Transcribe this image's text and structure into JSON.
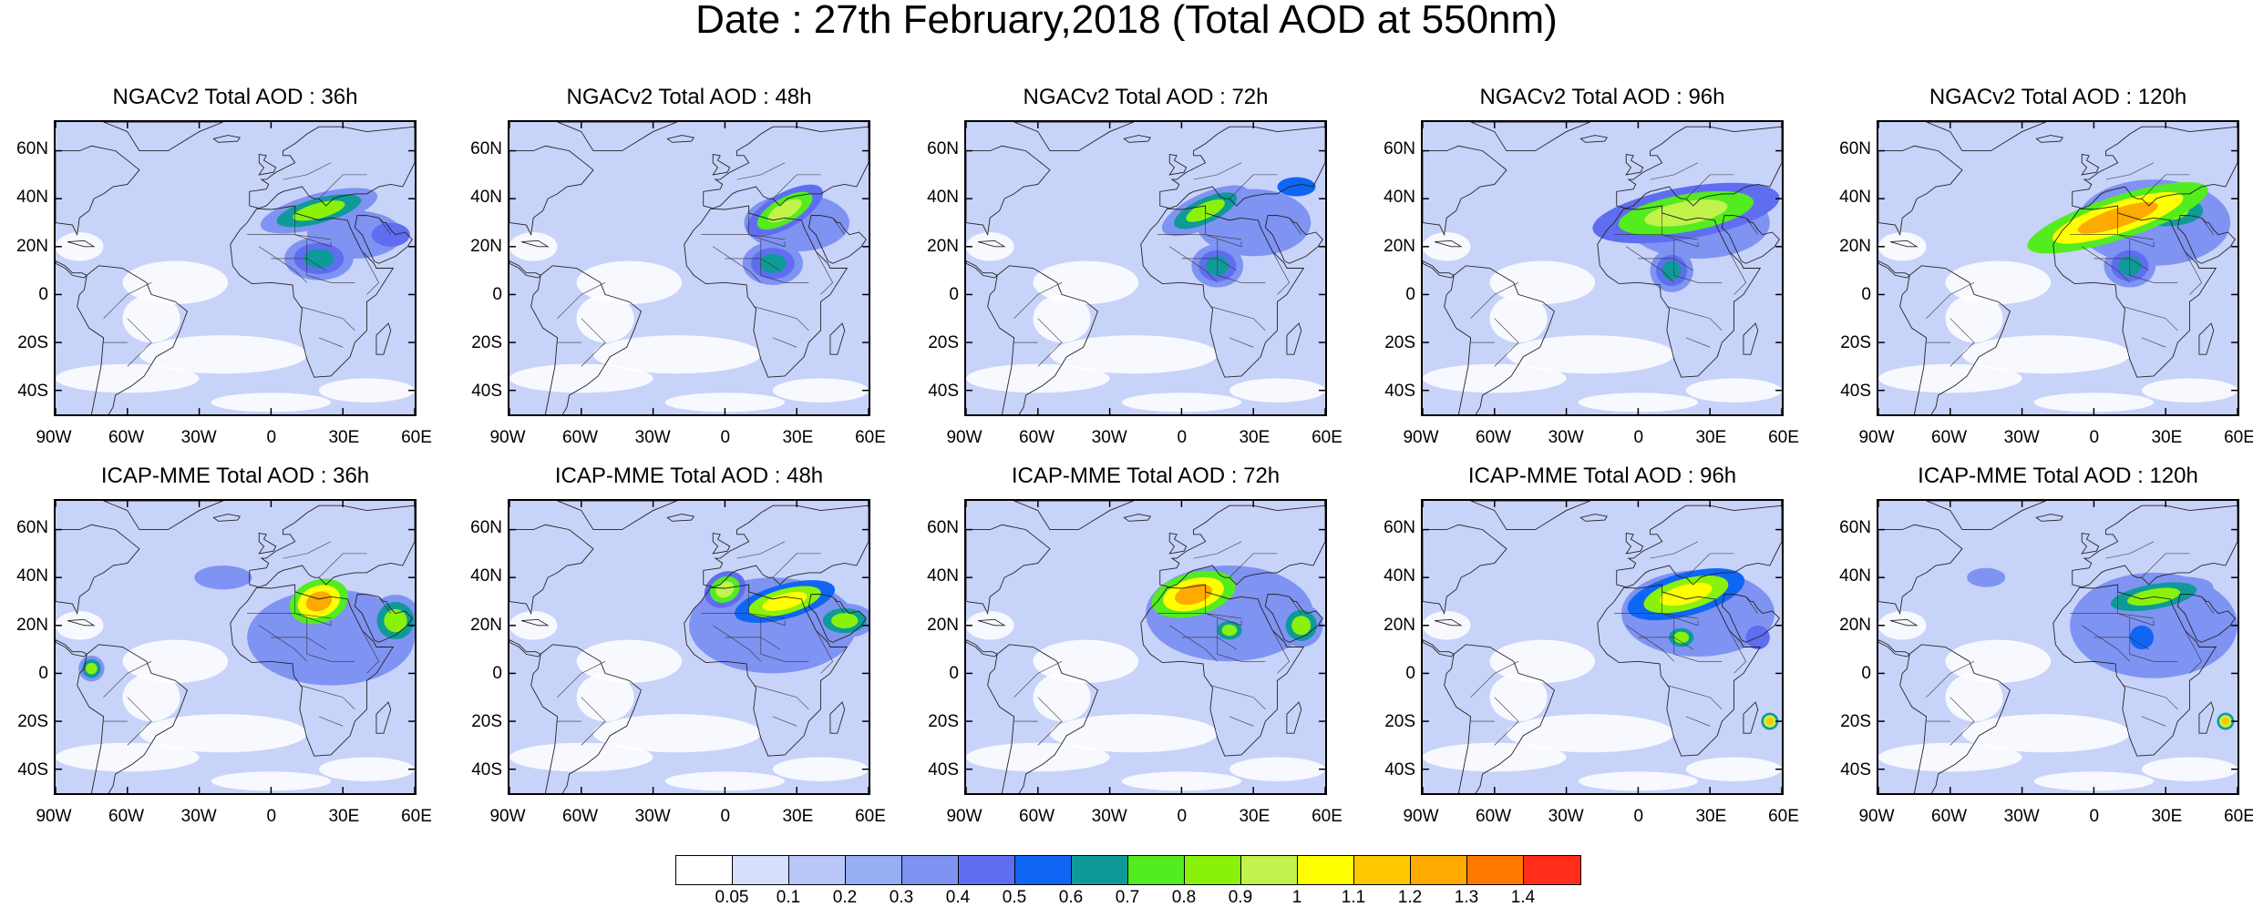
{
  "title": "Date : 27th February,2018 (Total AOD at 550nm)",
  "lat_labels": [
    "60N",
    "40N",
    "20N",
    "0",
    "20S",
    "40S"
  ],
  "lat_values": [
    60,
    40,
    20,
    0,
    -20,
    -40
  ],
  "lon_labels": [
    "90W",
    "60W",
    "30W",
    "0",
    "30E",
    "60E"
  ],
  "lon_values": [
    -90,
    -60,
    -30,
    0,
    30,
    60
  ],
  "lat_range": [
    -50,
    72
  ],
  "lon_range": [
    -90,
    60
  ],
  "panels": [
    {
      "id": "ngac-36",
      "title": "NGACv2 Total AOD : 36h",
      "row": 0,
      "col": 0,
      "plumes": [
        {
          "lon": 20,
          "lat": 35,
          "rx": 14,
          "ry": 4,
          "level": 9,
          "rot": -15
        },
        {
          "lon": 20,
          "lat": 15,
          "rx": 8,
          "ry": 5,
          "level": 7,
          "rot": 0
        },
        {
          "lon": 35,
          "lat": 25,
          "rx": 20,
          "ry": 10,
          "level": 4,
          "rot": 0
        },
        {
          "lon": 50,
          "lat": 25,
          "rx": 8,
          "ry": 5,
          "level": 5,
          "rot": 0
        }
      ]
    },
    {
      "id": "ngac-48",
      "title": "NGACv2 Total AOD : 48h",
      "row": 0,
      "col": 1,
      "plumes": [
        {
          "lon": 25,
          "lat": 35,
          "rx": 10,
          "ry": 4,
          "level": 10,
          "rot": -30
        },
        {
          "lon": 20,
          "lat": 13,
          "rx": 7,
          "ry": 5,
          "level": 7,
          "rot": 0
        },
        {
          "lon": 30,
          "lat": 30,
          "rx": 22,
          "ry": 12,
          "level": 4,
          "rot": 0
        }
      ]
    },
    {
      "id": "ngac-72",
      "title": "NGACv2 Total AOD : 72h",
      "row": 0,
      "col": 2,
      "plumes": [
        {
          "lon": 10,
          "lat": 35,
          "rx": 11,
          "ry": 4,
          "level": 9,
          "rot": -25
        },
        {
          "lon": 15,
          "lat": 12,
          "rx": 6,
          "ry": 5,
          "level": 7,
          "rot": 0
        },
        {
          "lon": 48,
          "lat": 45,
          "rx": 8,
          "ry": 4,
          "level": 6,
          "rot": 0
        },
        {
          "lon": 30,
          "lat": 30,
          "rx": 24,
          "ry": 14,
          "level": 4,
          "rot": 0
        }
      ]
    },
    {
      "id": "ngac-96",
      "title": "NGACv2 Total AOD : 96h",
      "row": 0,
      "col": 3,
      "plumes": [
        {
          "lon": 20,
          "lat": 34,
          "rx": 22,
          "ry": 6,
          "level": 10,
          "rot": -10
        },
        {
          "lon": 14,
          "lat": 10,
          "rx": 5,
          "ry": 5,
          "level": 7,
          "rot": 0
        },
        {
          "lon": 25,
          "lat": 30,
          "rx": 30,
          "ry": 15,
          "level": 4,
          "rot": 0
        }
      ]
    },
    {
      "id": "ngac-120",
      "title": "NGACv2 Total AOD : 120h",
      "row": 0,
      "col": 4,
      "plumes": [
        {
          "lon": 10,
          "lat": 32,
          "rx": 22,
          "ry": 5,
          "level": 13,
          "rot": -18
        },
        {
          "lon": 30,
          "lat": 35,
          "rx": 12,
          "ry": 5,
          "level": 9,
          "rot": 0
        },
        {
          "lon": 15,
          "lat": 12,
          "rx": 6,
          "ry": 5,
          "level": 7,
          "rot": 0
        },
        {
          "lon": 25,
          "lat": 30,
          "rx": 32,
          "ry": 18,
          "level": 4,
          "rot": 0
        }
      ]
    },
    {
      "id": "icap-36",
      "title": "ICAP-MME Total AOD : 36h",
      "row": 1,
      "col": 0,
      "plumes": [
        {
          "lon": 20,
          "lat": 30,
          "rx": 7,
          "ry": 5,
          "level": 13,
          "rot": -20
        },
        {
          "lon": 52,
          "lat": 22,
          "rx": 6,
          "ry": 6,
          "level": 9,
          "rot": 0
        },
        {
          "lon": -75,
          "lat": 2,
          "rx": 3,
          "ry": 3,
          "level": 9,
          "rot": 0
        },
        {
          "lon": 25,
          "lat": 15,
          "rx": 35,
          "ry": 20,
          "level": 4,
          "rot": 0
        },
        {
          "lon": -20,
          "lat": 40,
          "rx": 12,
          "ry": 5,
          "level": 4,
          "rot": 0
        }
      ]
    },
    {
      "id": "icap-48",
      "title": "ICAP-MME Total AOD : 48h",
      "row": 1,
      "col": 1,
      "plumes": [
        {
          "lon": 25,
          "lat": 30,
          "rx": 12,
          "ry": 4,
          "level": 11,
          "rot": -15
        },
        {
          "lon": 0,
          "lat": 35,
          "rx": 5,
          "ry": 4,
          "level": 10,
          "rot": -30
        },
        {
          "lon": 50,
          "lat": 22,
          "rx": 7,
          "ry": 4,
          "level": 9,
          "rot": 0
        },
        {
          "lon": 20,
          "lat": 20,
          "rx": 35,
          "ry": 20,
          "level": 4,
          "rot": 0
        }
      ]
    },
    {
      "id": "icap-72",
      "title": "ICAP-MME Total AOD : 72h",
      "row": 1,
      "col": 2,
      "plumes": [
        {
          "lon": 5,
          "lat": 33,
          "rx": 10,
          "ry": 5,
          "level": 13,
          "rot": -15
        },
        {
          "lon": 20,
          "lat": 18,
          "rx": 4,
          "ry": 3,
          "level": 9,
          "rot": 0
        },
        {
          "lon": 50,
          "lat": 20,
          "rx": 5,
          "ry": 5,
          "level": 9,
          "rot": 0
        },
        {
          "lon": 20,
          "lat": 25,
          "rx": 35,
          "ry": 20,
          "level": 4,
          "rot": 0
        }
      ]
    },
    {
      "id": "icap-96",
      "title": "ICAP-MME Total AOD : 96h",
      "row": 1,
      "col": 3,
      "plumes": [
        {
          "lon": 20,
          "lat": 33,
          "rx": 14,
          "ry": 5,
          "level": 11,
          "rot": -15
        },
        {
          "lon": 18,
          "lat": 15,
          "rx": 4,
          "ry": 3,
          "level": 9,
          "rot": 0
        },
        {
          "lon": 55,
          "lat": -20,
          "rx": 2,
          "ry": 2,
          "level": 12,
          "rot": 0
        },
        {
          "lon": 50,
          "lat": 15,
          "rx": 5,
          "ry": 5,
          "level": 5,
          "rot": 0
        },
        {
          "lon": 25,
          "lat": 25,
          "rx": 32,
          "ry": 18,
          "level": 4,
          "rot": 0
        }
      ]
    },
    {
      "id": "icap-120",
      "title": "ICAP-MME Total AOD : 120h",
      "row": 1,
      "col": 4,
      "plumes": [
        {
          "lon": 25,
          "lat": 32,
          "rx": 14,
          "ry": 4,
          "level": 9,
          "rot": -10
        },
        {
          "lon": 20,
          "lat": 15,
          "rx": 5,
          "ry": 5,
          "level": 6,
          "rot": 0
        },
        {
          "lon": 55,
          "lat": -20,
          "rx": 2,
          "ry": 2,
          "level": 12,
          "rot": 0
        },
        {
          "lon": 25,
          "lat": 20,
          "rx": 35,
          "ry": 22,
          "level": 4,
          "rot": 0
        },
        {
          "lon": -45,
          "lat": 40,
          "rx": 8,
          "ry": 4,
          "level": 4,
          "rot": 0
        }
      ]
    }
  ],
  "colorbar": {
    "colors": [
      "#ffffff",
      "#d6dffb",
      "#b9c8f8",
      "#95aef4",
      "#7f93f2",
      "#5f6ef0",
      "#0f66f5",
      "#0f9a9a",
      "#53ec1e",
      "#8af20a",
      "#c2f24c",
      "#ffff00",
      "#ffc800",
      "#ffaa00",
      "#ff7800",
      "#ff2d19"
    ],
    "labels": [
      "0.05",
      "0.1",
      "0.2",
      "0.3",
      "0.4",
      "0.5",
      "0.6",
      "0.7",
      "0.8",
      "0.9",
      "1",
      "1.1",
      "1.2",
      "1.3",
      "1.4"
    ]
  }
}
